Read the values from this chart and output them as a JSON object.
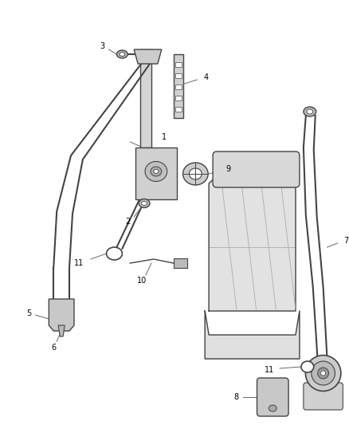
{
  "bg_color": "#ffffff",
  "line_color": "#666666",
  "dark_color": "#444444",
  "text_color": "#000000",
  "fill_color": "#e8e8e8",
  "label_fontsize": 7.0
}
